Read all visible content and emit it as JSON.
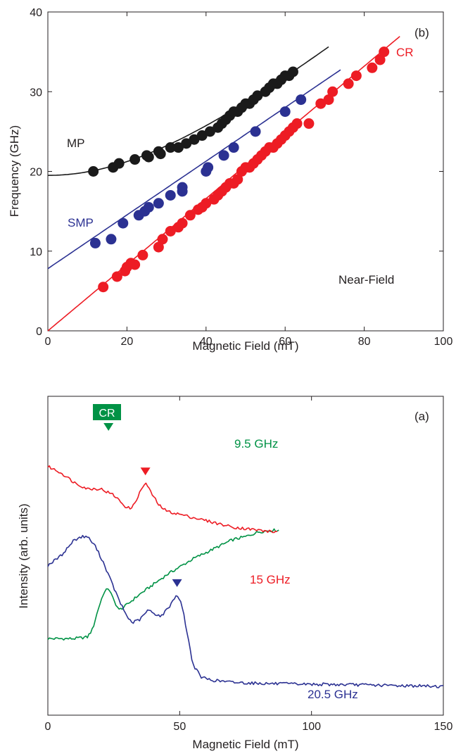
{
  "colors": {
    "mp": "#1a1a1a",
    "smp": "#2b3192",
    "cr": "#ed1c24",
    "green": "#009245",
    "axis": "#231f20"
  },
  "chart_data": [
    {
      "panel": "(b)",
      "type": "scatter",
      "xlabel": "Magnetic Field (mT)",
      "ylabel": "Frequency (GHz)",
      "xlim": [
        0,
        100
      ],
      "ylim": [
        0,
        40
      ],
      "xticks": [
        0,
        20,
        40,
        60,
        80,
        100
      ],
      "yticks": [
        0,
        10,
        20,
        30,
        40
      ],
      "annotations": [
        "MP",
        "SMP",
        "CR",
        "Near-Field"
      ],
      "series": [
        {
          "name": "MP",
          "points": [
            [
              11.5,
              20
            ],
            [
              16.5,
              20.5
            ],
            [
              18,
              21
            ],
            [
              22,
              21.5
            ],
            [
              25,
              22
            ],
            [
              25.5,
              21.8
            ],
            [
              28,
              22.5
            ],
            [
              28.5,
              22.2
            ],
            [
              31,
              23
            ],
            [
              33,
              23
            ],
            [
              35,
              23.5
            ],
            [
              37,
              24
            ],
            [
              39,
              24.5
            ],
            [
              41,
              25
            ],
            [
              43,
              25.5
            ],
            [
              44,
              26
            ],
            [
              45,
              26.5
            ],
            [
              46,
              27
            ],
            [
              47,
              27.5
            ],
            [
              48,
              27.5
            ],
            [
              49,
              28
            ],
            [
              50,
              28.5
            ],
            [
              51,
              28.5
            ],
            [
              52,
              29
            ],
            [
              53,
              29.5
            ],
            [
              55,
              30
            ],
            [
              56,
              30.5
            ],
            [
              57,
              31
            ],
            [
              58,
              31
            ],
            [
              59,
              31.5
            ],
            [
              60,
              32
            ],
            [
              61,
              32
            ],
            [
              62,
              32.5
            ]
          ],
          "fit": {
            "formula": "sqrt(f0^2 + (k*B)^2)",
            "f0": 19.5,
            "k": 0.42,
            "xrange": [
              0,
              71
            ]
          }
        },
        {
          "name": "SMP",
          "points": [
            [
              12,
              11
            ],
            [
              16,
              11.5
            ],
            [
              19,
              13.5
            ],
            [
              23,
              14.5
            ],
            [
              24.5,
              15
            ],
            [
              25.5,
              15.5
            ],
            [
              28,
              16
            ],
            [
              31,
              17
            ],
            [
              34,
              17.5
            ],
            [
              34,
              18
            ],
            [
              40,
              20
            ],
            [
              40.5,
              20.5
            ],
            [
              44.5,
              22
            ],
            [
              47,
              23
            ],
            [
              52.5,
              25
            ],
            [
              60,
              27.5
            ],
            [
              64,
              29
            ]
          ],
          "fit": {
            "formula": "linear",
            "intercept": 7.8,
            "slope": 0.337,
            "xrange": [
              0,
              74
            ]
          }
        },
        {
          "name": "CR",
          "points": [
            [
              14,
              5.5
            ],
            [
              17.5,
              6.8
            ],
            [
              19.5,
              7.5
            ],
            [
              20,
              8
            ],
            [
              21,
              8.5
            ],
            [
              22,
              8.3
            ],
            [
              24,
              9.5
            ],
            [
              28,
              10.5
            ],
            [
              29,
              11.5
            ],
            [
              31,
              12.5
            ],
            [
              33,
              13
            ],
            [
              34,
              13.5
            ],
            [
              36,
              14.5
            ],
            [
              38,
              15.2
            ],
            [
              39,
              15.5
            ],
            [
              40,
              16
            ],
            [
              42,
              16.5
            ],
            [
              43,
              17
            ],
            [
              44,
              17.5
            ],
            [
              45,
              18
            ],
            [
              46,
              18.5
            ],
            [
              47,
              18.5
            ],
            [
              48,
              19
            ],
            [
              49,
              20
            ],
            [
              50,
              20.5
            ],
            [
              51,
              20.5
            ],
            [
              52,
              21
            ],
            [
              53,
              21.5
            ],
            [
              54,
              22
            ],
            [
              55,
              22.5
            ],
            [
              56,
              23
            ],
            [
              57,
              23
            ],
            [
              58,
              23.5
            ],
            [
              59,
              24
            ],
            [
              60,
              24.5
            ],
            [
              61,
              25
            ],
            [
              62,
              25.5
            ],
            [
              63,
              26
            ],
            [
              66,
              26
            ],
            [
              69,
              28.5
            ],
            [
              71,
              29
            ],
            [
              72,
              30
            ],
            [
              76,
              31
            ],
            [
              78,
              32
            ],
            [
              82,
              33
            ],
            [
              84,
              34
            ],
            [
              85,
              35
            ]
          ],
          "fit": {
            "formula": "linear",
            "intercept": 0,
            "slope": 0.415,
            "xrange": [
              0,
              89
            ]
          }
        }
      ]
    },
    {
      "panel": "(a)",
      "type": "line",
      "xlabel": "Magnetic Field (mT)",
      "ylabel": "Intensity (arb. units)",
      "xlim": [
        0,
        150
      ],
      "ylim": [
        0,
        100
      ],
      "xticks": [
        0,
        50,
        100,
        150
      ],
      "marker_label": "CR",
      "series": [
        {
          "name": "9.5 GHz",
          "resonance_marker": 23,
          "points": [
            [
              0,
              24
            ],
            [
              5,
              24
            ],
            [
              10,
              24
            ],
            [
              15,
              24.5
            ],
            [
              17,
              27
            ],
            [
              19,
              33
            ],
            [
              21,
              38
            ],
            [
              23,
              40
            ],
            [
              25,
              36
            ],
            [
              27,
              33
            ],
            [
              29,
              34
            ],
            [
              32,
              36
            ],
            [
              35,
              38
            ],
            [
              40,
              41
            ],
            [
              45,
              44
            ],
            [
              50,
              46.5
            ],
            [
              55,
              49
            ],
            [
              60,
              51
            ],
            [
              65,
              53
            ],
            [
              70,
              55
            ],
            [
              75,
              56
            ],
            [
              80,
              57.5
            ],
            [
              85,
              58
            ],
            [
              88,
              58
            ]
          ]
        },
        {
          "name": "15 GHz",
          "resonance_marker": 37,
          "points": [
            [
              0,
              78
            ],
            [
              5,
              76
            ],
            [
              10,
              73
            ],
            [
              15,
              71
            ],
            [
              20,
              71
            ],
            [
              25,
              69
            ],
            [
              30,
              65
            ],
            [
              32,
              65
            ],
            [
              35,
              70
            ],
            [
              37,
              73
            ],
            [
              39,
              70
            ],
            [
              42,
              66
            ],
            [
              45,
              64
            ],
            [
              50,
              63
            ],
            [
              55,
              62
            ],
            [
              60,
              61
            ],
            [
              65,
              60
            ],
            [
              70,
              59
            ],
            [
              75,
              58.5
            ],
            [
              80,
              58
            ],
            [
              85,
              57.5
            ],
            [
              87,
              57.5
            ]
          ]
        },
        {
          "name": "20.5 GHz",
          "resonance_marker": 49,
          "points": [
            [
              0,
              47
            ],
            [
              5,
              50
            ],
            [
              10,
              55
            ],
            [
              13,
              56
            ],
            [
              15,
              56
            ],
            [
              18,
              53
            ],
            [
              21,
              48
            ],
            [
              24,
              42
            ],
            [
              27,
              36
            ],
            [
              30,
              31
            ],
            [
              32,
              29
            ],
            [
              35,
              30
            ],
            [
              38,
              33
            ],
            [
              40,
              32
            ],
            [
              43,
              31
            ],
            [
              46,
              34
            ],
            [
              49,
              38
            ],
            [
              51,
              34
            ],
            [
              53,
              25
            ],
            [
              55,
              16
            ],
            [
              58,
              12
            ],
            [
              62,
              11
            ],
            [
              70,
              10.3
            ],
            [
              80,
              10
            ],
            [
              90,
              9.8
            ],
            [
              100,
              9.7
            ],
            [
              110,
              9.6
            ],
            [
              120,
              9.5
            ],
            [
              130,
              9.3
            ],
            [
              140,
              9.2
            ],
            [
              150,
              9
            ]
          ]
        }
      ]
    }
  ]
}
